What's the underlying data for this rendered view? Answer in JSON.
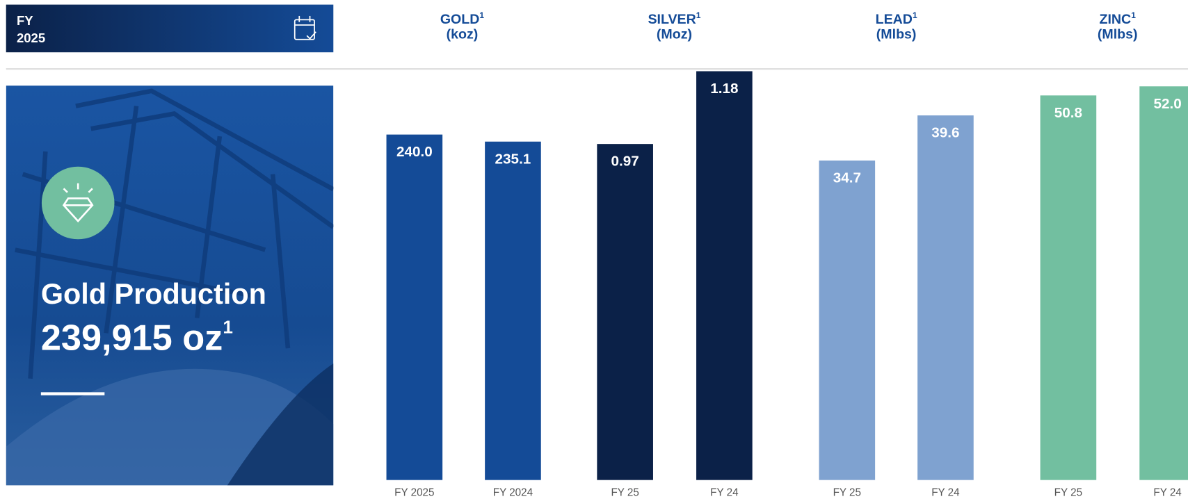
{
  "header": {
    "lines": [
      "FY",
      "2025"
    ]
  },
  "panel": {
    "title": "Gold Production",
    "value": "239,915 oz",
    "note": "1"
  },
  "chart_data": [
    {
      "type": "bar",
      "title": "GOLD",
      "title_note": "1",
      "subtitle": "(koz)",
      "categories": [
        "FY 2025",
        "FY 2024"
      ],
      "values": [
        240.0,
        235.1
      ],
      "value_labels": [
        "240.0",
        "235.1"
      ],
      "color": "#144b97",
      "ylim": [
        0,
        284
      ]
    },
    {
      "type": "bar",
      "title": "SILVER",
      "title_note": "1",
      "subtitle": "(Moz)",
      "categories": [
        "FY 25",
        "FY 24"
      ],
      "values": [
        0.97,
        1.18
      ],
      "color": "#0b2148",
      "ylim": [
        0,
        1.18
      ]
    },
    {
      "type": "bar",
      "title": "LEAD",
      "title_note": "1",
      "subtitle": "(Mlbs)",
      "categories": [
        "FY 25",
        "FY 24"
      ],
      "values": [
        34.7,
        39.6
      ],
      "color": "#7fa2d0",
      "ylim": [
        0,
        44.4
      ]
    },
    {
      "type": "bar",
      "title": "ZINC",
      "title_note": "1",
      "subtitle": "(Mlbs)",
      "categories": [
        "FY 25",
        "FY 24"
      ],
      "values": [
        50.8,
        52.0
      ],
      "value_labels": [
        "50.8",
        "52.0"
      ],
      "color": "#72bfa0",
      "ylim": [
        0,
        54
      ]
    }
  ]
}
